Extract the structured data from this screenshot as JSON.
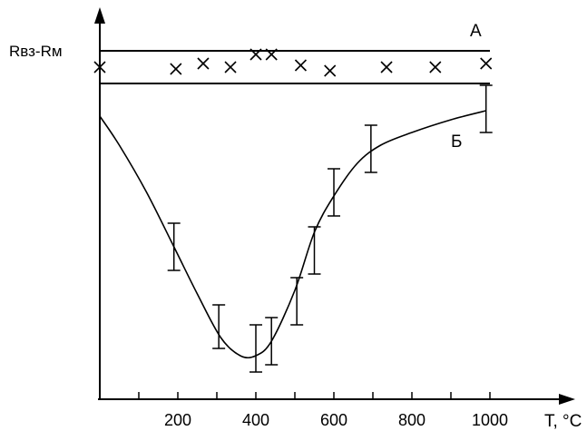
{
  "chart_data": {
    "type": "line",
    "xlabel": "T, °C",
    "ylabel": "Rвз-Rм",
    "xlim": [
      0,
      1000
    ],
    "x_ticks": [
      100,
      200,
      300,
      400,
      500,
      600,
      700,
      800,
      900,
      1000
    ],
    "x_tick_labels": [
      "200",
      "400",
      "600",
      "800",
      "1000"
    ],
    "x_tick_label_values": [
      200,
      400,
      600,
      800,
      1000
    ],
    "ylim": [
      0,
      100
    ],
    "grid": false,
    "band": {
      "name": "А",
      "lower": 87,
      "upper": 96,
      "points": [
        {
          "x": 0,
          "y": 91.5
        },
        {
          "x": 195,
          "y": 91
        },
        {
          "x": 265,
          "y": 92.5
        },
        {
          "x": 335,
          "y": 91.5
        },
        {
          "x": 400,
          "y": 95
        },
        {
          "x": 440,
          "y": 95
        },
        {
          "x": 515,
          "y": 92
        },
        {
          "x": 590,
          "y": 90.5
        },
        {
          "x": 735,
          "y": 91.5
        },
        {
          "x": 860,
          "y": 91.5
        },
        {
          "x": 990,
          "y": 92.5
        }
      ]
    },
    "series": [
      {
        "name": "Б",
        "curve": [
          {
            "x": 0,
            "y": 78
          },
          {
            "x": 50,
            "y": 70
          },
          {
            "x": 120,
            "y": 57
          },
          {
            "x": 190,
            "y": 42
          },
          {
            "x": 250,
            "y": 29
          },
          {
            "x": 310,
            "y": 17
          },
          {
            "x": 360,
            "y": 12
          },
          {
            "x": 400,
            "y": 12
          },
          {
            "x": 440,
            "y": 16
          },
          {
            "x": 500,
            "y": 30
          },
          {
            "x": 550,
            "y": 46
          },
          {
            "x": 600,
            "y": 56
          },
          {
            "x": 660,
            "y": 65
          },
          {
            "x": 720,
            "y": 70
          },
          {
            "x": 800,
            "y": 73.5
          },
          {
            "x": 900,
            "y": 77
          },
          {
            "x": 990,
            "y": 79.5
          }
        ],
        "points": [
          {
            "x": 190,
            "y": 42,
            "yerr": 6.5
          },
          {
            "x": 305,
            "y": 20,
            "yerr": 6
          },
          {
            "x": 400,
            "y": 14,
            "yerr": 6.5
          },
          {
            "x": 440,
            "y": 16,
            "yerr": 6.5
          },
          {
            "x": 505,
            "y": 27,
            "yerr": 6.5
          },
          {
            "x": 550,
            "y": 41,
            "yerr": 6.5
          },
          {
            "x": 600,
            "y": 57,
            "yerr": 6.5
          },
          {
            "x": 695,
            "y": 69,
            "yerr": 6.5
          },
          {
            "x": 990,
            "y": 80,
            "yerr": 6.5
          }
        ]
      }
    ]
  }
}
